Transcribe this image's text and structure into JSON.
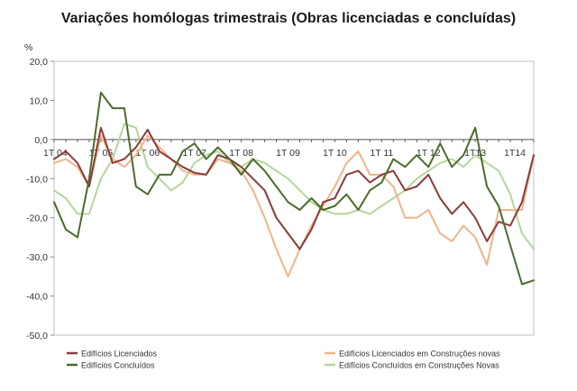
{
  "chart_data": {
    "type": "line",
    "title": "Variações homólogas trimestrais (Obras licenciadas e concluídas)",
    "ylabel": "%",
    "xlabel": "",
    "ylim": [
      -50,
      20
    ],
    "y_ticks": [
      "20,0",
      "10,0",
      "0,0",
      "-10,0",
      "-20,0",
      "-30,0",
      "-40,0",
      "-50,0"
    ],
    "y_tick_values": [
      20,
      10,
      0,
      -10,
      -20,
      -30,
      -40,
      -50
    ],
    "x_tick_labels": [
      "1T 04",
      "1T 05",
      "1T 06",
      "1T 07",
      "1T 08",
      "1T 09",
      "1T 10",
      "1T 11",
      "1T 12",
      "1T13",
      "1T14"
    ],
    "x_tick_indices": [
      0,
      4,
      8,
      12,
      16,
      20,
      24,
      28,
      32,
      36,
      40
    ],
    "legend_position": "bottom",
    "grid": false,
    "series": [
      {
        "name": "Edifícios Licenciados",
        "color": "#8b3a3a",
        "values": [
          -5,
          -3,
          -6,
          -12,
          3,
          -6,
          -5,
          -2,
          2.5,
          -3,
          -5,
          -7,
          -8.5,
          -9,
          -4,
          -5,
          -7,
          -10,
          -13,
          -20,
          -24,
          -28,
          -23,
          -16,
          -15,
          -9,
          -8,
          -11,
          -9,
          -8,
          -13,
          -12,
          -9,
          -15,
          -19,
          -16,
          -20,
          -26,
          -21,
          -22,
          -16,
          -4
        ]
      },
      {
        "name": "Edifícios Concluídos",
        "color": "#4b6b2a",
        "values": [
          -16,
          -23,
          -25,
          -10,
          12,
          8,
          8,
          -12,
          -14,
          -9,
          -9,
          -3,
          -1,
          -5,
          -2,
          -5,
          -9,
          -5,
          -8,
          -12,
          -16,
          -18,
          -15,
          -18,
          -17,
          -14,
          -18,
          -13,
          -11,
          -5,
          -7,
          -4,
          -7,
          -1,
          -7,
          -4,
          3,
          -12,
          -17,
          -27,
          -37,
          -36
        ]
      },
      {
        "name": "Edifícios Licenciados em Construções novas",
        "color": "#f0b48a",
        "values": [
          -6,
          -5,
          -7,
          -12,
          1,
          -5,
          -7,
          -4,
          1,
          -2,
          -5,
          -8,
          -9,
          -9,
          -5,
          -6,
          -8,
          -13,
          -20,
          -28,
          -35,
          -28,
          -22,
          -17,
          -12,
          -6,
          -3,
          -9,
          -9,
          -12,
          -20,
          -20,
          -18,
          -24,
          -26,
          -22,
          -25,
          -32,
          -18,
          -18,
          -18,
          -4
        ]
      },
      {
        "name": "Edifícios Concluídos em Construções Novas",
        "color": "#b5d69a",
        "values": [
          -13,
          -15,
          -19,
          -19,
          -10,
          -5,
          4,
          3,
          -7,
          -10,
          -13,
          -11,
          -6,
          -4,
          -3,
          -6,
          -7,
          -5,
          -6,
          -8,
          -10,
          -13,
          -16,
          -18,
          -19,
          -19,
          -18,
          -19,
          -17,
          -15,
          -13,
          -10,
          -8,
          -6,
          -5,
          -7,
          -4,
          -6,
          -8,
          -14,
          -24,
          -28
        ]
      }
    ]
  }
}
